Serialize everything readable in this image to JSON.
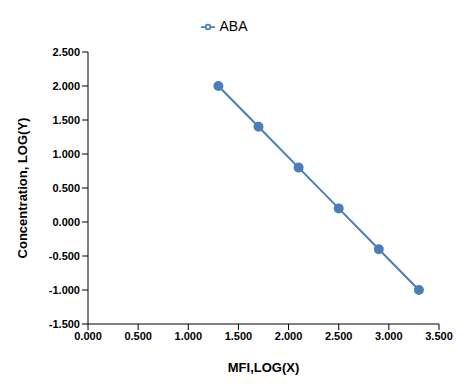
{
  "chart_data": {
    "type": "line",
    "x_label": "MFI,LOG(X)",
    "y_label": "Concentration, LOG(Y)",
    "x": [
      1.3,
      1.7,
      2.1,
      2.5,
      2.9,
      3.3
    ],
    "series": [
      {
        "name": "ABA",
        "color": "#4a7ebb",
        "marker": "circle",
        "values": [
          2.0,
          1.4,
          0.8,
          0.2,
          -0.4,
          -1.0
        ]
      }
    ],
    "xlim": [
      0,
      3.5
    ],
    "xticks": [
      {
        "value": 0,
        "label": "0.000"
      },
      {
        "value": 0.5,
        "label": "0.500"
      },
      {
        "value": 1,
        "label": "1.000"
      },
      {
        "value": 1.5,
        "label": "1.500"
      },
      {
        "value": 2,
        "label": "2.000"
      },
      {
        "value": 2.5,
        "label": "2.500"
      },
      {
        "value": 3,
        "label": "3.000"
      },
      {
        "value": 3.5,
        "label": "3.500"
      }
    ],
    "ylim": [
      -1.5,
      2.5
    ],
    "yticks": [
      {
        "value": -1.5,
        "label": "-1.500"
      },
      {
        "value": -1,
        "label": "-1.000"
      },
      {
        "value": -0.5,
        "label": "-0.500"
      },
      {
        "value": 0,
        "label": "0.000"
      },
      {
        "value": 0.5,
        "label": "0.500"
      },
      {
        "value": 1,
        "label": "1.000"
      },
      {
        "value": 1.5,
        "label": "1.500"
      },
      {
        "value": 2,
        "label": "2.000"
      },
      {
        "value": 2.5,
        "label": "2.500"
      }
    ],
    "legend": "top"
  }
}
